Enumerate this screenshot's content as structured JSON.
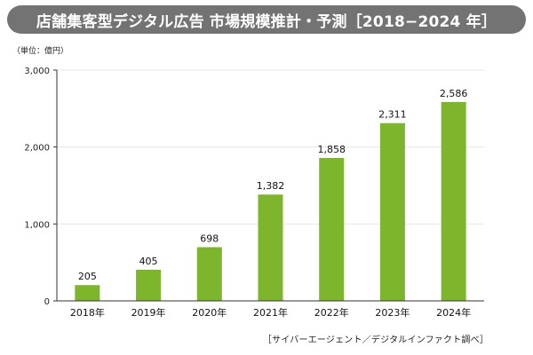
{
  "title": "店舗集客型デジタル広告 市場規模推計・予測［2018−2024 年］",
  "unit_note": "（単位：億円）",
  "source": "［サイバーエージェント／デジタルインファクト調べ］",
  "colors": {
    "bar": "#7db52d",
    "title_bg": "#737373",
    "axis": "#333333",
    "grid": "#e6e6e6"
  },
  "chart_data": {
    "type": "bar",
    "categories": [
      "2018年",
      "2019年",
      "2020年",
      "2021年",
      "2022年",
      "2023年",
      "2024年"
    ],
    "values": [
      205,
      405,
      698,
      1382,
      1858,
      2311,
      2586
    ],
    "value_labels": [
      "205",
      "405",
      "698",
      "1,382",
      "1,858",
      "2,311",
      "2,586"
    ],
    "ylim": [
      0,
      3000
    ],
    "yticks": [
      0,
      1000,
      2000,
      3000
    ],
    "ytick_labels": [
      "0",
      "1,000",
      "2,000",
      "3,000"
    ],
    "grid": true,
    "legend": "none"
  }
}
